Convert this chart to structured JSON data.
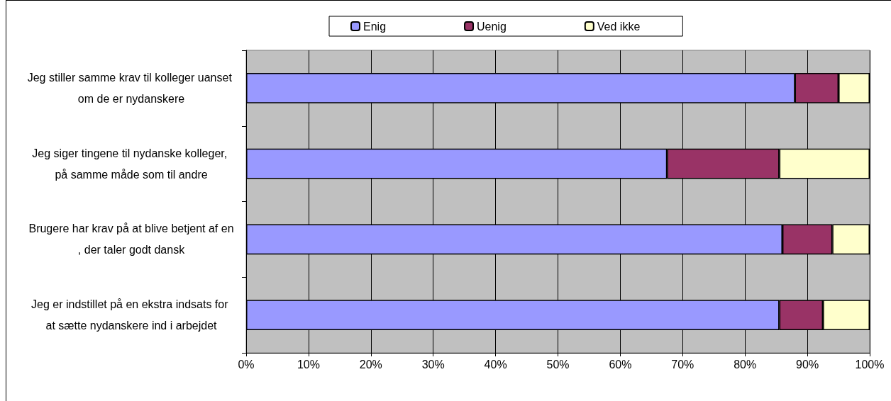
{
  "chart_data": {
    "type": "bar",
    "orientation": "horizontal",
    "stacked": true,
    "categories": [
      "Jeg stiller samme krav til kolleger uanset om de er nydanskere",
      "Jeg siger tingene til nydanske kolleger, på samme måde som til andre",
      "Brugere har krav på at blive betjent af en, der taler godt dansk",
      "Jeg er indstillet på en ekstra indsats for at sætte nydanskere ind i arbejdet"
    ],
    "series": [
      {
        "name": "Enig",
        "color": "#9999ff",
        "values": [
          88,
          67.5,
          86,
          85.5
        ]
      },
      {
        "name": "Uenig",
        "color": "#993366",
        "values": [
          7,
          18,
          8,
          7
        ]
      },
      {
        "name": "Ved ikke",
        "color": "#ffffcc",
        "values": [
          5,
          14.5,
          6,
          7.5
        ]
      }
    ],
    "xlim": [
      0,
      100
    ],
    "xticks": [
      {
        "value": 0,
        "label": "0%"
      },
      {
        "value": 10,
        "label": "10%"
      },
      {
        "value": 20,
        "label": "20%"
      },
      {
        "value": 30,
        "label": "30%"
      },
      {
        "value": 40,
        "label": "40%"
      },
      {
        "value": 50,
        "label": "50%"
      },
      {
        "value": 60,
        "label": "60%"
      },
      {
        "value": 70,
        "label": "70%"
      },
      {
        "value": 80,
        "label": "80%"
      },
      {
        "value": 90,
        "label": "90%"
      },
      {
        "value": 100,
        "label": "100%"
      }
    ],
    "grid": "x",
    "legend": "top"
  }
}
